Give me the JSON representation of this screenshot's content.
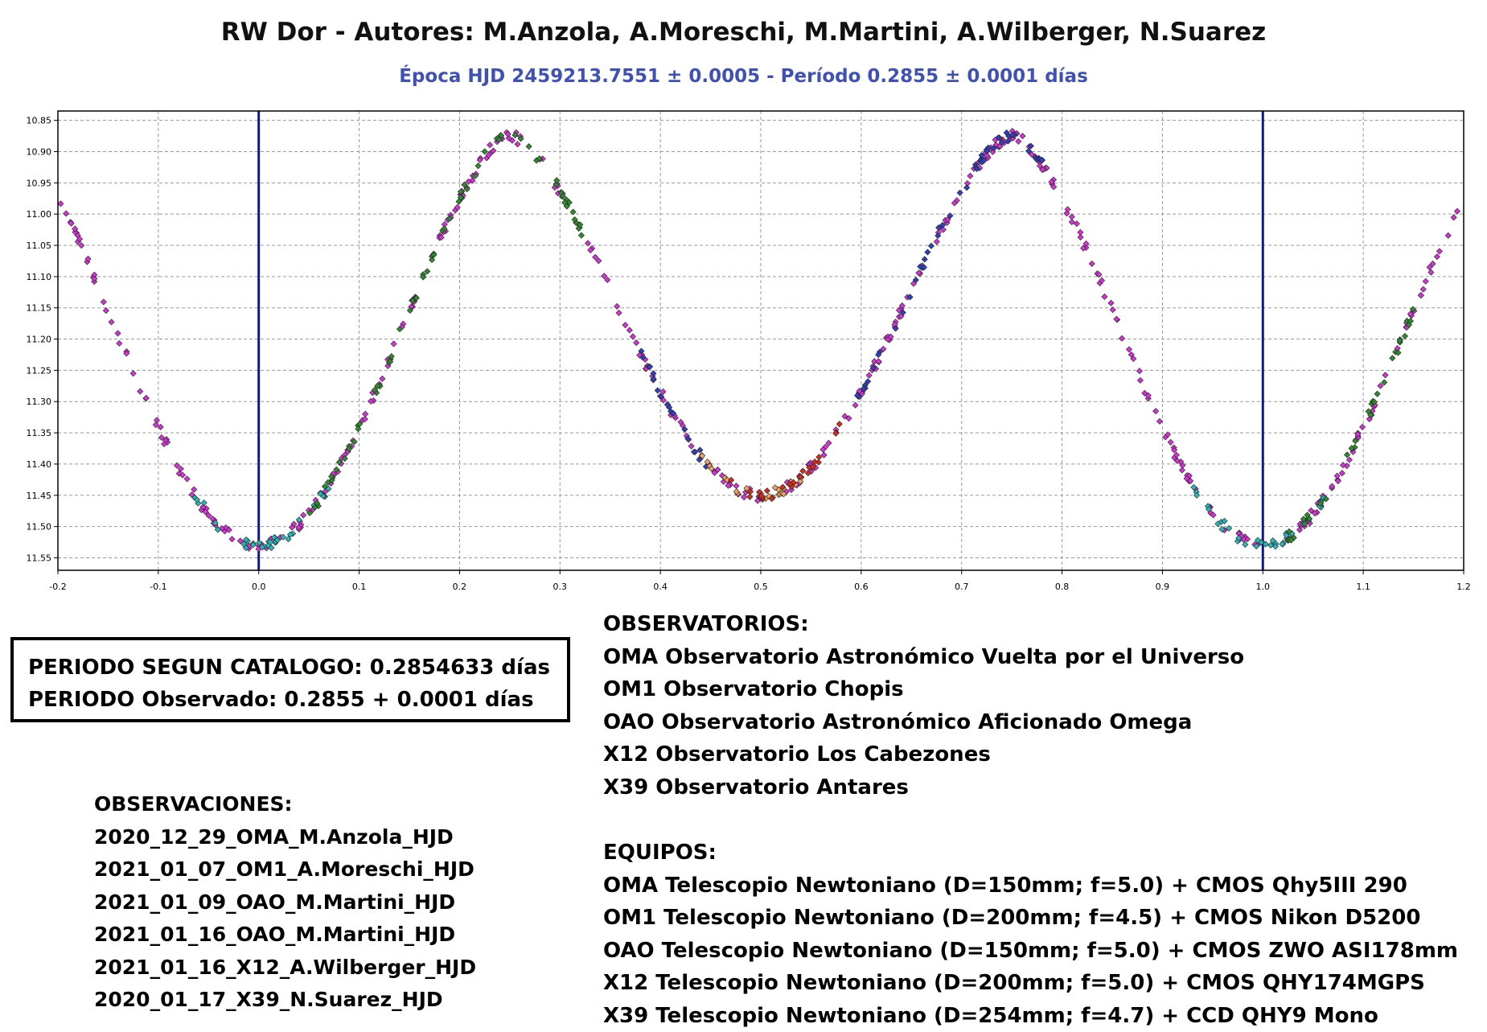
{
  "chart_data": {
    "type": "scatter",
    "title": "RW Dor - Autores: M.Anzola, A.Moreschi, M.Martini, A.Wilberger, N.Suarez",
    "subtitle": "Época HJD 2459213.7551 ± 0.0005 - Período 0.2855 ± 0.0001 días",
    "xlabel": "",
    "ylabel": "",
    "xlim": [
      -0.2,
      1.2
    ],
    "ylim": [
      10.85,
      11.57
    ],
    "y_inverted": true,
    "grid": true,
    "x_ticks": [
      "-0.2",
      "-0.1",
      "0.0",
      "0.1",
      "0.2",
      "0.3",
      "0.4",
      "0.5",
      "0.6",
      "0.7",
      "0.8",
      "0.9",
      "1.0",
      "1.1",
      "1.2"
    ],
    "y_ticks": [
      "10.85",
      "10.90",
      "10.95",
      "11.00",
      "11.05",
      "11.10",
      "11.15",
      "11.20",
      "11.25",
      "11.30",
      "11.35",
      "11.40",
      "11.45",
      "11.50",
      "11.55"
    ],
    "vertical_lines": [
      0.0,
      1.0
    ],
    "vertical_line_color": "#0d1a8a",
    "light_curve_model": {
      "max_mag": 10.875,
      "primary_min_mag": 11.53,
      "secondary_min_mag": 11.45,
      "primary_min_phase": 0.0,
      "secondary_min_phase": 0.5,
      "max_phases": [
        0.25,
        0.75
      ]
    },
    "series": [
      {
        "color": "#d633d6",
        "phase_ranges": [
          [
            -0.2,
            1.2
          ]
        ]
      },
      {
        "color": "#2ab7b7",
        "phase_ranges": [
          [
            -0.07,
            0.07
          ],
          [
            0.93,
            1.07
          ]
        ]
      },
      {
        "color": "#2e8b2e",
        "phase_ranges": [
          [
            0.05,
            0.33
          ],
          [
            1.02,
            1.16
          ]
        ]
      },
      {
        "color": "#2f3fbf",
        "phase_ranges": [
          [
            0.38,
            0.45
          ],
          [
            0.58,
            0.78
          ]
        ]
      },
      {
        "color": "#f2a25c",
        "phase_ranges": [
          [
            0.44,
            0.54
          ]
        ]
      },
      {
        "color": "#d92a1c",
        "phase_ranges": [
          [
            0.47,
            0.58
          ]
        ]
      }
    ]
  },
  "info_box": {
    "line1": "PERIODO SEGUN CATALOGO: 0.2854633 días",
    "line2": "PERIODO Observado: 0.2855 + 0.0001  días"
  },
  "observaciones": {
    "heading": "OBSERVACIONES:",
    "items": [
      "2020_12_29_OMA_M.Anzola_HJD",
      "2021_01_07_OM1_A.Moreschi_HJD",
      "2021_01_09_OAO_M.Martini_HJD",
      "2021_01_16_OAO_M.Martini_HJD",
      "2021_01_16_X12_A.Wilberger_HJD",
      "2020_01_17_X39_N.Suarez_HJD"
    ]
  },
  "observatorios": {
    "heading": "OBSERVATORIOS:",
    "items": [
      "OMA Observatorio Astronómico Vuelta por el Universo",
      "OM1 Observatorio Chopis",
      "OAO Observatorio Astronómico Aficionado Omega",
      "X12 Observatorio Los Cabezones",
      "X39 Observatorio Antares"
    ]
  },
  "equipos": {
    "heading": "EQUIPOS:",
    "items": [
      "OMA Telescopio Newtoniano (D=150mm; f=5.0) + CMOS Qhy5III 290",
      "OM1 Telescopio Newtoniano (D=200mm; f=4.5) + CMOS Nikon D5200",
      "OAO Telescopio Newtoniano (D=150mm; f=5.0) + CMOS ZWO ASI178mm",
      "X12 Telescopio Newtoniano (D=200mm; f=5.0) + CMOS QHY174MGPS",
      "X39 Telescopio Newtoniano (D=254mm; f=4.7) + CCD QHY9 Mono"
    ]
  }
}
